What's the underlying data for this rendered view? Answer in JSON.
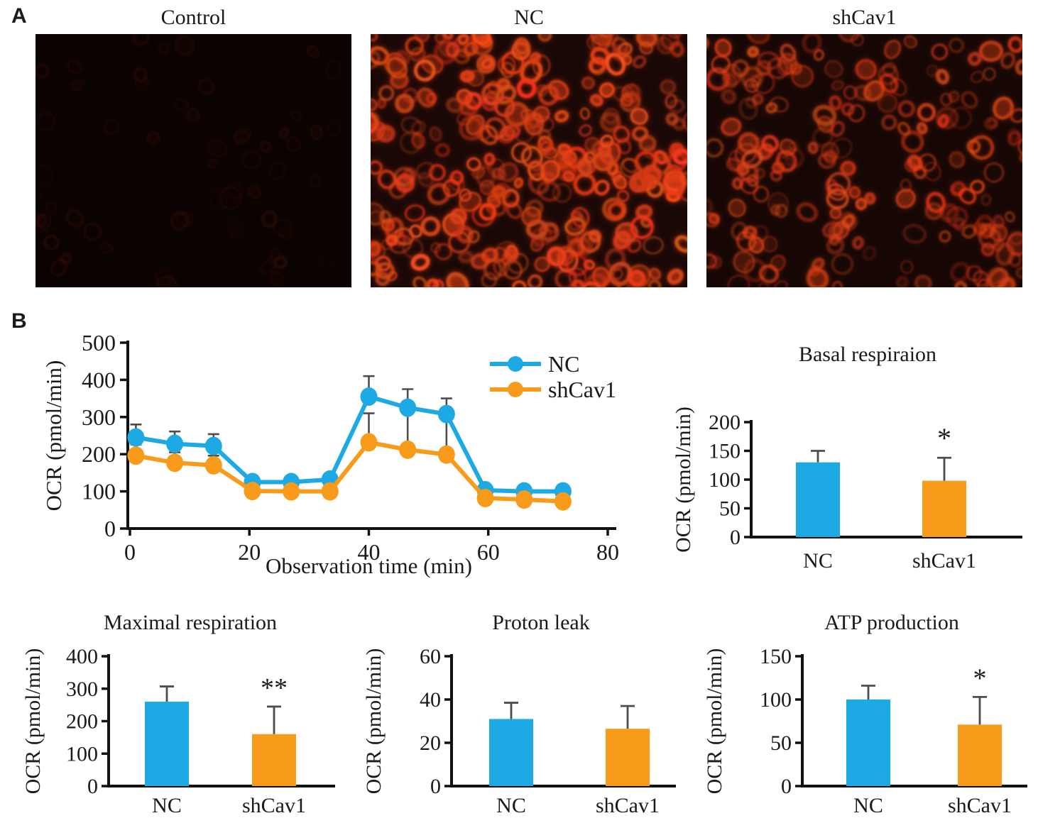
{
  "panel_a": {
    "label": "A",
    "images": [
      {
        "label": "Control",
        "cell_count": 70,
        "intensity": 0.09
      },
      {
        "label": "NC",
        "cell_count": 340,
        "intensity": 1.0
      },
      {
        "label": "shCav1",
        "cell_count": 220,
        "intensity": 0.72
      }
    ]
  },
  "panel_b": {
    "label": "B"
  },
  "colors": {
    "nc": "#1CA9E4",
    "shcav1": "#F89B1B",
    "error_bar": "#4d4d4d",
    "text": "#1a1a1a"
  },
  "chart_data": [
    {
      "type": "line",
      "title": "",
      "xlabel": "Observation time (min)",
      "ylabel": "OCR (pmol/min)",
      "xlim": [
        0,
        80
      ],
      "xticks": [
        0,
        20,
        40,
        60,
        80
      ],
      "ylim": [
        0,
        500
      ],
      "yticks": [
        0,
        100,
        200,
        300,
        400,
        500
      ],
      "grid": false,
      "legend_position": "top-right",
      "x": [
        1,
        7.5,
        14,
        20.5,
        27,
        33.5,
        40,
        46.5,
        53,
        59.5,
        66,
        72.5
      ],
      "series": [
        {
          "name": "NC",
          "color_key": "nc",
          "values": [
            245,
            228,
            222,
            125,
            125,
            132,
            355,
            325,
            308,
            103,
            100,
            100
          ],
          "err_up": [
            35,
            33,
            32,
            15,
            15,
            13,
            55,
            50,
            42,
            0,
            0,
            0
          ]
        },
        {
          "name": "shCav1",
          "color_key": "shcav1",
          "values": [
            196,
            177,
            170,
            101,
            100,
            100,
            232,
            212,
            199,
            82,
            78,
            73
          ],
          "err_up": [
            30,
            28,
            26,
            12,
            12,
            12,
            78,
            112,
            110,
            0,
            0,
            0
          ]
        }
      ]
    },
    {
      "type": "bar",
      "title": "Basal respiraion",
      "ylabel": "OCR (pmol/min)",
      "ylim": [
        0,
        200
      ],
      "yticks": [
        0,
        50,
        100,
        150,
        200
      ],
      "categories": [
        "NC",
        "shCav1"
      ],
      "values": [
        130,
        98
      ],
      "err_up": [
        20,
        40
      ],
      "sig": [
        "",
        "*"
      ]
    },
    {
      "type": "bar",
      "title": "Maximal respiration",
      "ylabel": "OCR (pmol/min)",
      "ylim": [
        0,
        400
      ],
      "yticks": [
        0,
        100,
        200,
        300,
        400
      ],
      "categories": [
        "NC",
        "shCav1"
      ],
      "values": [
        260,
        160
      ],
      "err_up": [
        47,
        85
      ],
      "sig": [
        "",
        "**"
      ]
    },
    {
      "type": "bar",
      "title": "Proton leak",
      "ylabel": "OCR (pmol/min)",
      "ylim": [
        0,
        60
      ],
      "yticks": [
        0,
        20,
        40,
        60
      ],
      "categories": [
        "NC",
        "shCav1"
      ],
      "values": [
        31,
        26.5
      ],
      "err_up": [
        7.5,
        10.5
      ],
      "sig": [
        "",
        ""
      ]
    },
    {
      "type": "bar",
      "title": "ATP production",
      "ylabel": "OCR (pmol/min)",
      "ylim": [
        0,
        150
      ],
      "yticks": [
        0,
        50,
        100,
        150
      ],
      "categories": [
        "NC",
        "shCav1"
      ],
      "values": [
        100,
        71
      ],
      "err_up": [
        16,
        32
      ],
      "sig": [
        "",
        "*"
      ]
    }
  ]
}
